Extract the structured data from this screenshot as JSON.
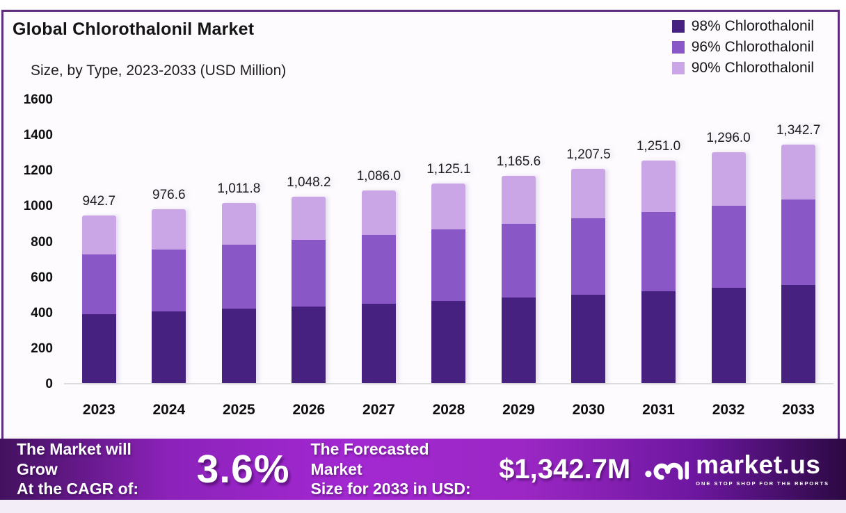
{
  "header": {
    "title": "Global Chlorothalonil Market",
    "subtitle": "Size, by Type, 2023-2033 (USD Million)"
  },
  "legend": [
    {
      "label": "98% Chlorothalonil",
      "color": "#472180"
    },
    {
      "label": "96% Chlorothalonil",
      "color": "#8A57C6"
    },
    {
      "label": "90% Chlorothalonil",
      "color": "#CBA6E6"
    }
  ],
  "chart_data": {
    "type": "bar",
    "stacked": true,
    "title": "Global Chlorothalonil Market Size, by Type, 2023-2033 (USD Million)",
    "categories": [
      "2023",
      "2024",
      "2025",
      "2026",
      "2027",
      "2028",
      "2029",
      "2030",
      "2031",
      "2032",
      "2033"
    ],
    "totals": [
      942.7,
      976.6,
      1011.8,
      1048.2,
      1086.0,
      1125.1,
      1165.6,
      1207.5,
      1251.0,
      1296.0,
      1342.7
    ],
    "total_labels": [
      "942.7",
      "976.6",
      "1,011.8",
      "1,048.2",
      "1,086.0",
      "1,125.1",
      "1,165.6",
      "1,207.5",
      "1,251.0",
      "1,296.0",
      "1,342.7"
    ],
    "series": [
      {
        "name": "98% Chlorothalonil",
        "color": "#472180",
        "values": [
          388.4,
          402.4,
          416.9,
          431.9,
          447.4,
          463.5,
          480.2,
          497.5,
          515.4,
          534.0,
          553.2
        ],
        "estimated": true
      },
      {
        "name": "96% Chlorothalonil",
        "color": "#8A57C6",
        "values": [
          336.5,
          348.6,
          361.2,
          374.2,
          387.7,
          401.7,
          416.1,
          431.1,
          446.6,
          462.7,
          479.3
        ],
        "estimated": true
      },
      {
        "name": "90% Chlorothalonil",
        "color": "#CBA6E6",
        "values": [
          217.8,
          225.6,
          233.7,
          242.1,
          250.9,
          259.9,
          269.3,
          278.9,
          289.0,
          299.3,
          310.2
        ],
        "estimated": true
      }
    ],
    "xlabel": "",
    "ylabel": "",
    "ylim": [
      0,
      1600
    ],
    "yticks": [
      "1600",
      "1400",
      "1200",
      "1000",
      "800",
      "600",
      "400",
      "200",
      "0"
    ],
    "grid": false,
    "legend_position": "top-right"
  },
  "footer": {
    "cagr_line1": "The Market will Grow",
    "cagr_line2": "At the CAGR of:",
    "cagr_value": "3.6%",
    "forecast_line1": "The Forecasted Market",
    "forecast_line2": "Size for 2033 in USD:",
    "forecast_value": "$1,342.7M",
    "brand": {
      "name": "market.us",
      "tagline": "ONE STOP SHOP FOR THE REPORTS"
    }
  }
}
